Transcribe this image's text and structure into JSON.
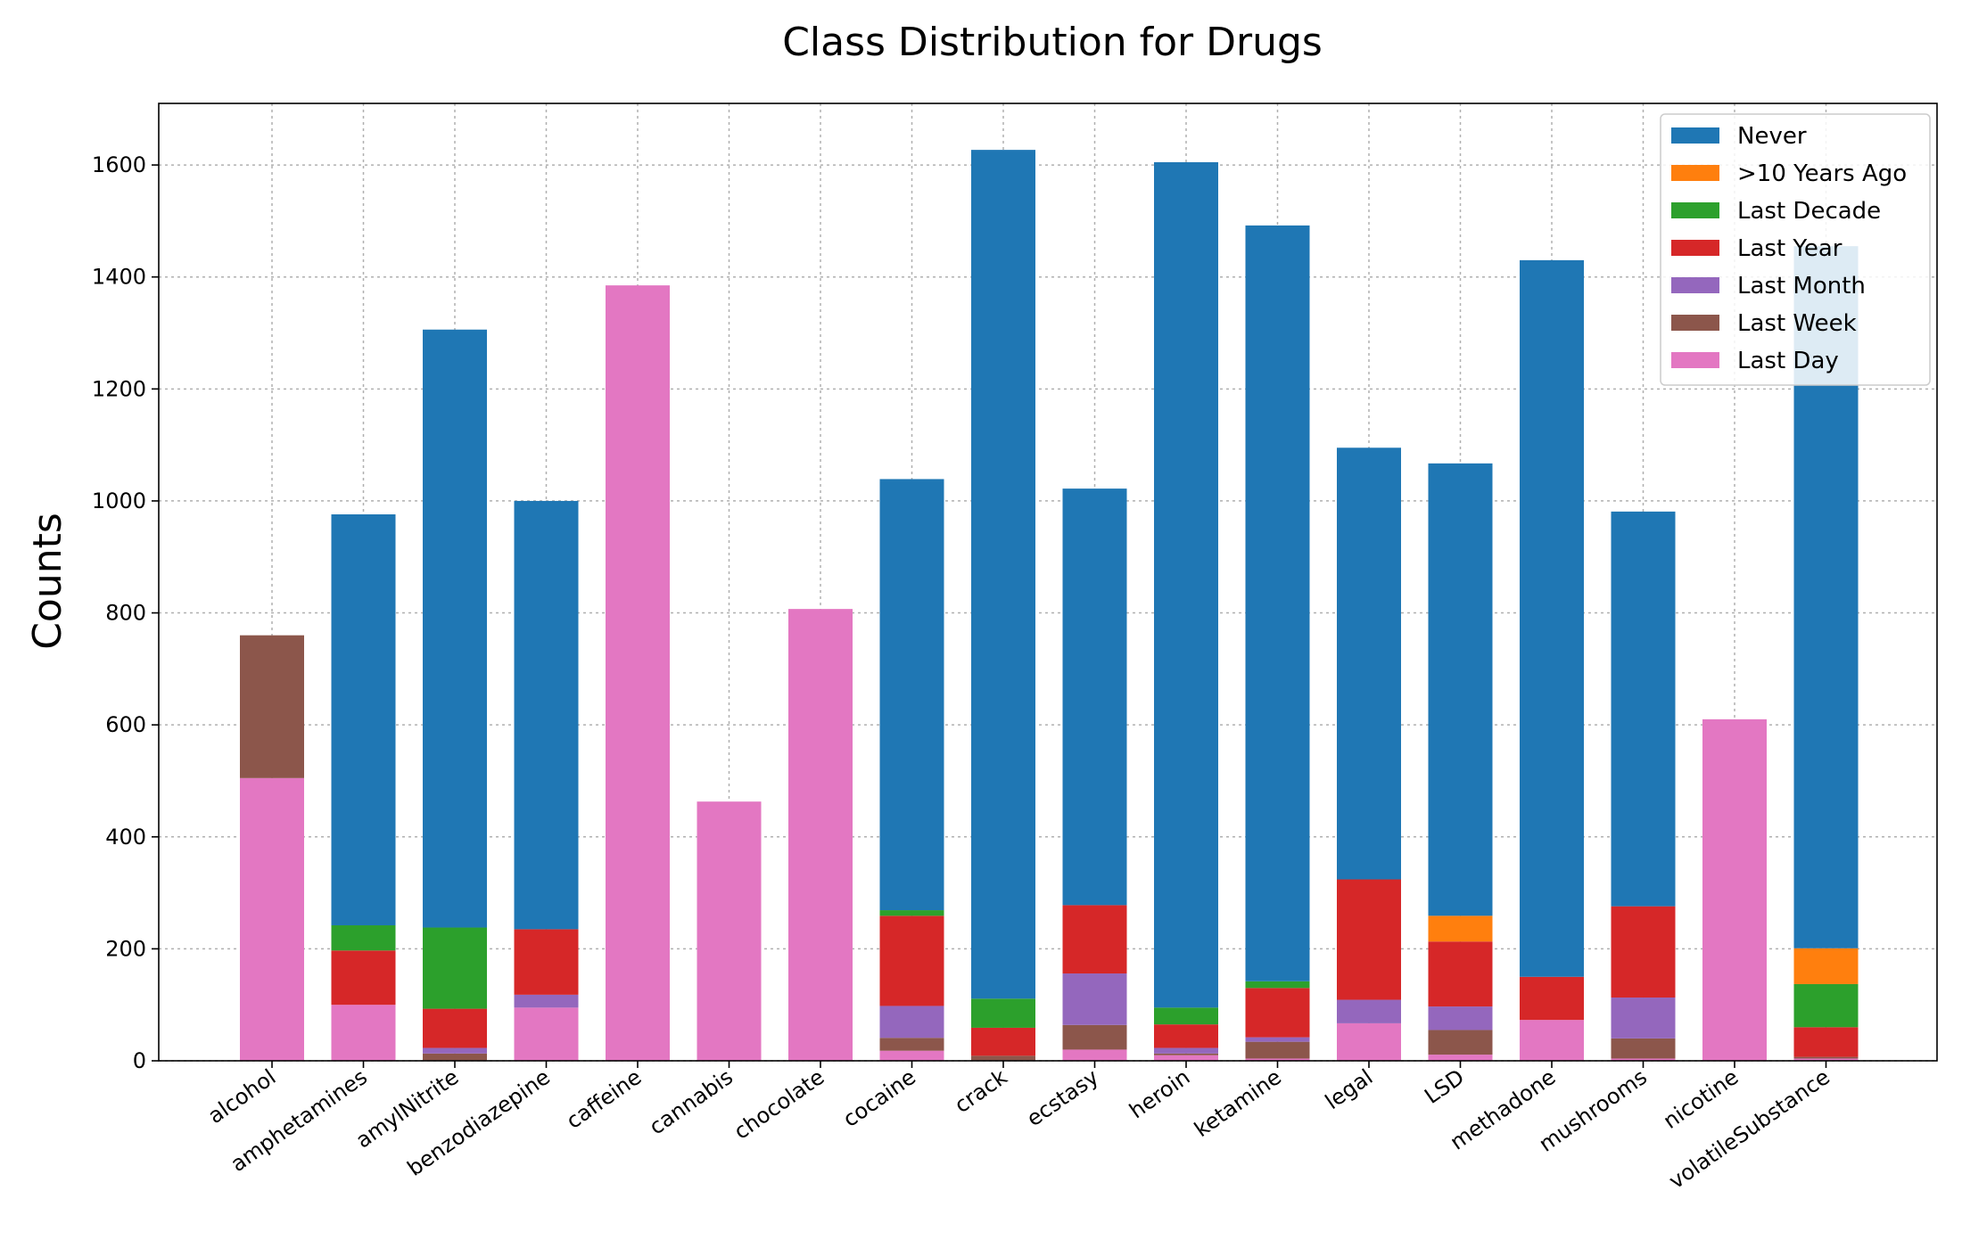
{
  "chart_data": {
    "type": "bar",
    "stacked": true,
    "title": "Class Distribution for Drugs",
    "xlabel": "",
    "ylabel": "Counts",
    "ylim": [
      0,
      1710
    ],
    "yticks": [
      0,
      200,
      400,
      600,
      800,
      1000,
      1200,
      1400,
      1600
    ],
    "grid": true,
    "legend_position": "top-right",
    "categories": [
      "alcohol",
      "amphetamines",
      "amylNitrite",
      "benzodiazepine",
      "caffeine",
      "cannabis",
      "chocolate",
      "cocaine",
      "crack",
      "ecstasy",
      "heroin",
      "ketamine",
      "legal",
      "LSD",
      "methadone",
      "mushrooms",
      "nicotine",
      "volatileSubstance"
    ],
    "series": [
      {
        "name": "Last Day",
        "color": "#e377c2",
        "values": [
          505,
          100,
          1,
          95,
          1385,
          463,
          807,
          18,
          1,
          20,
          10,
          4,
          67,
          11,
          73,
          4,
          610,
          4
        ]
      },
      {
        "name": "Last Week",
        "color": "#8c564b",
        "values": [
          255,
          0,
          12,
          0,
          0,
          0,
          0,
          23,
          8,
          44,
          3,
          30,
          0,
          44,
          0,
          36,
          0,
          3
        ]
      },
      {
        "name": "Last Month",
        "color": "#9467bd",
        "values": [
          0,
          0,
          10,
          23,
          0,
          0,
          0,
          57,
          0,
          92,
          10,
          8,
          42,
          42,
          0,
          73,
          0,
          0
        ]
      },
      {
        "name": "Last Year",
        "color": "#d62728",
        "values": [
          0,
          97,
          70,
          117,
          0,
          0,
          0,
          161,
          50,
          122,
          42,
          88,
          215,
          116,
          77,
          163,
          0,
          53
        ]
      },
      {
        "name": "Last Decade",
        "color": "#2ca02c",
        "values": [
          0,
          45,
          145,
          0,
          0,
          0,
          0,
          10,
          52,
          0,
          30,
          12,
          0,
          0,
          0,
          0,
          0,
          77
        ]
      },
      {
        "name": ">10 Years Ago",
        "color": "#ff7f0e",
        "values": [
          0,
          0,
          0,
          0,
          0,
          0,
          0,
          0,
          0,
          0,
          0,
          0,
          0,
          46,
          0,
          0,
          0,
          64
        ]
      },
      {
        "name": "Never",
        "color": "#1f77b4",
        "values": [
          0,
          734,
          1068,
          765,
          0,
          0,
          0,
          770,
          1516,
          744,
          1510,
          1350,
          771,
          808,
          1280,
          705,
          0,
          1254
        ]
      }
    ],
    "legend_order": [
      "Never",
      ">10 Years Ago",
      "Last Decade",
      "Last Year",
      "Last Month",
      "Last Week",
      "Last Day"
    ]
  }
}
